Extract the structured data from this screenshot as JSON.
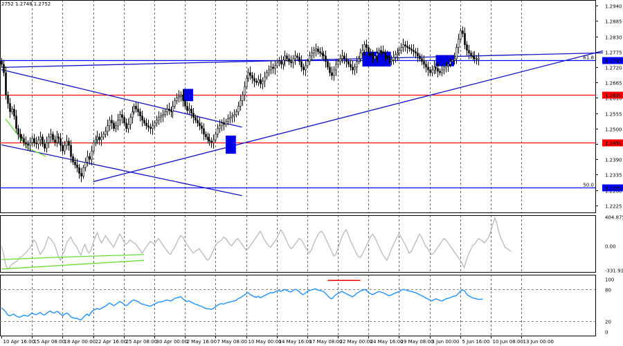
{
  "header": {
    "ohlc_text": "2752 1.2748 1.2752"
  },
  "colors": {
    "bull": "#ffffff",
    "bear": "#000000",
    "wick": "#000000",
    "level_red": "#ff0000",
    "level_blue": "#0000ff",
    "channel": "#1010c8",
    "box": "#0000e6",
    "cci_line": "#b4b4b4",
    "rsi_line": "#1e90ff",
    "green": "#66dd33",
    "grid": "#808080"
  },
  "chart_data": [
    {
      "type": "candlestick",
      "panel": "price",
      "ylim": [
        1.22,
        1.296
      ],
      "y_tick_labels": [
        "1.2940",
        "1.2885",
        "1.2830",
        "1.2775",
        "1.2720",
        "1.2665",
        "1.2610",
        "1.2555",
        "1.2500",
        "1.2445",
        "1.2390",
        "1.2335",
        "1.2280",
        "1.2225"
      ],
      "y_tick_values": [
        1.294,
        1.2885,
        1.283,
        1.2775,
        1.272,
        1.2665,
        1.261,
        1.2555,
        1.25,
        1.2445,
        1.239,
        1.2335,
        1.228,
        1.2225
      ],
      "x_tick_labels": [
        "10 Apr 16:00",
        "15 Apr 08:00",
        "18 Apr 00:00",
        "22 Apr 16:00",
        "25 Apr 08:00",
        "30 Apr 00:00",
        "2 May 16:00",
        "7 May 08:00",
        "10 May 00:00",
        "14 May 16:00",
        "17 May 08:00",
        "22 May 00:00",
        "24 May 16:00",
        "29 May 08:00",
        "3 Jun 00:00",
        "5 Jun 16:00",
        "10 Jun 08:00",
        "13 Jun 00:00"
      ],
      "x_tick_index": [
        0,
        15,
        30,
        45,
        60,
        75,
        90,
        105,
        120,
        135,
        150,
        165,
        180,
        195,
        210,
        225,
        240,
        255
      ],
      "close": [
        1.273,
        1.27,
        1.262,
        1.259,
        1.256,
        1.257,
        1.2545,
        1.25,
        1.248,
        1.247,
        1.2465,
        1.245,
        1.2445,
        1.244,
        1.245,
        1.2465,
        1.2448,
        1.2445,
        1.246,
        1.247,
        1.2445,
        1.243,
        1.245,
        1.247,
        1.248,
        1.246,
        1.245,
        1.247,
        1.2465,
        1.244,
        1.242,
        1.244,
        1.2455,
        1.244,
        1.24,
        1.238,
        1.237,
        1.236,
        1.234,
        1.233,
        1.236,
        1.238,
        1.24,
        1.239,
        1.242,
        1.245,
        1.246,
        1.247,
        1.246,
        1.247,
        1.248,
        1.249,
        1.251,
        1.253,
        1.252,
        1.25,
        1.251,
        1.253,
        1.255,
        1.254,
        1.252,
        1.25,
        1.2515,
        1.254,
        1.256,
        1.258,
        1.257,
        1.256,
        1.2545,
        1.253,
        1.252,
        1.251,
        1.2505,
        1.25,
        1.251,
        1.252,
        1.253,
        1.254,
        1.2545,
        1.255,
        1.256,
        1.257,
        1.2565,
        1.256,
        1.258,
        1.26,
        1.261,
        1.2615,
        1.262,
        1.26,
        1.258,
        1.2565,
        1.257,
        1.2555,
        1.254,
        1.253,
        1.252,
        1.251,
        1.25,
        1.248,
        1.247,
        1.246,
        1.2455,
        1.245,
        1.246,
        1.248,
        1.25,
        1.251,
        1.252,
        1.2515,
        1.2525,
        1.2535,
        1.254,
        1.2545,
        1.255,
        1.256,
        1.258,
        1.26,
        1.262,
        1.265,
        1.268,
        1.27,
        1.269,
        1.268,
        1.267,
        1.2665,
        1.2675,
        1.266,
        1.267,
        1.2685,
        1.27,
        1.271,
        1.272,
        1.2715,
        1.2725,
        1.2735,
        1.274,
        1.273,
        1.2745,
        1.276,
        1.275,
        1.274,
        1.2735,
        1.275,
        1.276,
        1.2755,
        1.274,
        1.272,
        1.271,
        1.2725,
        1.274,
        1.276,
        1.277,
        1.278,
        1.2785,
        1.2775,
        1.277,
        1.2765,
        1.276,
        1.274,
        1.272,
        1.27,
        1.269,
        1.271,
        1.273,
        1.274,
        1.275,
        1.276,
        1.275,
        1.274,
        1.273,
        1.272,
        1.271,
        1.272,
        1.274,
        1.275,
        1.277,
        1.278,
        1.28,
        1.279,
        1.277,
        1.276,
        1.275,
        1.276,
        1.277,
        1.278,
        1.2775,
        1.277,
        1.276,
        1.275,
        1.274,
        1.2745,
        1.2755,
        1.2765,
        1.277,
        1.278,
        1.279,
        1.28,
        1.2795,
        1.279,
        1.2785,
        1.278,
        1.2775,
        1.277,
        1.276,
        1.275,
        1.274,
        1.273,
        1.272,
        1.271,
        1.27,
        1.271,
        1.272,
        1.2715,
        1.2705,
        1.27,
        1.271,
        1.272,
        1.2725,
        1.273,
        1.274,
        1.2745,
        1.275,
        1.279,
        1.282,
        1.285,
        1.284,
        1.28,
        1.278,
        1.277,
        1.276,
        1.2755,
        1.275,
        1.2748,
        1.2752
      ],
      "levels": [
        {
          "value": 1.2745,
          "label": "1.2745",
          "prefix": "61.8",
          "color": "#0000ff"
        },
        {
          "value": 1.262,
          "label": "1.2620",
          "prefix": "",
          "color": "#ff0000"
        },
        {
          "value": 1.245,
          "label": "1.2450",
          "prefix": "",
          "color": "#ff0000"
        },
        {
          "value": 1.2289,
          "label": "1.2289",
          "prefix": "50.0",
          "color": "#0000ff"
        }
      ],
      "trendlines": [
        {
          "from": [
            0,
            1.2719
          ],
          "to": [
            295,
            1.2771
          ]
        },
        {
          "from": [
            0,
            1.2711
          ],
          "to": [
            118,
            1.2505
          ]
        },
        {
          "from": [
            0,
            1.2442
          ],
          "to": [
            118,
            1.226
          ]
        },
        {
          "from": [
            45,
            1.231
          ],
          "to": [
            295,
            1.2778
          ]
        }
      ],
      "boxes": [
        {
          "i0": 89,
          "i1": 94,
          "y0": 1.2598,
          "y1": 1.2642
        },
        {
          "i0": 110,
          "i1": 115,
          "y0": 1.241,
          "y1": 1.2475
        },
        {
          "i0": 177,
          "i1": 191,
          "y0": 1.2722,
          "y1": 1.2775
        },
        {
          "i0": 213,
          "i1": 222,
          "y0": 1.2723,
          "y1": 1.2763
        }
      ]
    },
    {
      "type": "line",
      "panel": "cci",
      "ylim": [
        -360,
        420
      ],
      "y_tick_labels": [
        "404.8759",
        "0.00",
        "-331.9168"
      ],
      "y_tick_values": [
        404.8759,
        0,
        -331.9168
      ],
      "values": [
        0,
        -100,
        -250,
        -320,
        -300,
        -260,
        -240,
        -220,
        -200,
        -160,
        -150,
        -120,
        -100,
        -60,
        -30,
        20,
        80,
        40,
        -40,
        -120,
        -80,
        -40,
        40,
        120,
        100,
        60,
        20,
        -60,
        -150,
        -200,
        -120,
        -60,
        40,
        80,
        120,
        60,
        20,
        -20,
        -80,
        -130,
        -40,
        20,
        -60,
        -100,
        -60,
        40,
        120,
        180,
        100,
        40,
        80,
        140,
        100,
        60,
        20,
        -20,
        40,
        100,
        160,
        120,
        60,
        20,
        40,
        80,
        60,
        40,
        20,
        -20,
        -60,
        -100,
        -60,
        -20,
        20,
        60,
        40,
        20,
        60,
        100,
        60,
        20,
        -20,
        -60,
        -100,
        -120,
        -60,
        -20,
        40,
        100,
        140,
        120,
        60,
        20,
        -20,
        -60,
        -100,
        -80,
        -60,
        -40,
        -80,
        -120,
        -160,
        -200,
        -180,
        -120,
        -60,
        0,
        40,
        60,
        80,
        120,
        100,
        60,
        20,
        0,
        40,
        80,
        100,
        60,
        20,
        -20,
        -60,
        -40,
        0,
        40,
        80,
        120,
        160,
        200,
        140,
        80,
        40,
        0,
        -20,
        20,
        60,
        100,
        160,
        220,
        180,
        120,
        60,
        0,
        -40,
        -20,
        20,
        60,
        100,
        80,
        40,
        -20,
        -60,
        -100,
        -60,
        20,
        80,
        140,
        180,
        200,
        160,
        100,
        40,
        -20,
        -80,
        -140,
        -120,
        -40,
        40,
        120,
        180,
        220,
        160,
        80,
        20,
        -40,
        -100,
        -150,
        -160,
        -120,
        -60,
        0,
        60,
        120,
        160,
        120,
        60,
        0,
        -60,
        -120,
        -160,
        -200,
        -140,
        -60,
        0,
        60,
        120,
        160,
        120,
        60,
        20,
        -40,
        -100,
        -80,
        -20,
        40,
        100,
        160,
        120,
        60,
        0,
        -40,
        -80,
        -120,
        -100,
        -60,
        -20,
        20,
        60,
        100,
        80,
        40,
        0,
        -40,
        -80,
        -120,
        -160,
        -200,
        -250,
        -300,
        -200,
        -120,
        -60,
        0,
        20,
        60,
        100,
        80,
        60,
        40,
        80,
        120,
        200,
        300,
        380,
        300,
        180,
        100,
        40,
        -20,
        -40,
        -60,
        -80
      ],
      "segments": [
        {
          "from": [
            0,
            -320
          ],
          "to": [
            70,
            -200
          ]
        },
        {
          "from": [
            0,
            -190
          ],
          "to": [
            26,
            -160
          ]
        },
        {
          "from": [
            26,
            -160
          ],
          "to": [
            70,
            -120
          ]
        }
      ]
    },
    {
      "type": "line",
      "panel": "rsi",
      "ylim": [
        0,
        100
      ],
      "y_tick_labels": [
        "100",
        "80",
        "20",
        "0"
      ],
      "y_tick_values": [
        100,
        80,
        20,
        0
      ],
      "values": [
        45,
        42,
        38,
        32,
        30,
        31,
        33,
        30,
        28,
        27,
        29,
        31,
        30,
        29,
        32,
        35,
        33,
        32,
        34,
        36,
        33,
        31,
        34,
        37,
        39,
        36,
        35,
        38,
        37,
        33,
        30,
        33,
        35,
        33,
        28,
        26,
        25,
        25,
        23,
        22,
        26,
        30,
        33,
        30,
        36,
        40,
        42,
        44,
        42,
        44,
        46,
        48,
        51,
        54,
        52,
        49,
        51,
        54,
        57,
        55,
        52,
        49,
        51,
        55,
        58,
        60,
        58,
        57,
        54,
        52,
        51,
        50,
        49,
        48,
        50,
        52,
        54,
        56,
        56,
        57,
        58,
        60,
        59,
        58,
        60,
        63,
        64,
        65,
        66,
        62,
        59,
        57,
        58,
        56,
        54,
        52,
        51,
        49,
        48,
        46,
        44,
        43,
        43,
        42,
        44,
        47,
        50,
        52,
        53,
        52,
        54,
        55,
        56,
        57,
        58,
        59,
        62,
        64,
        66,
        69,
        72,
        74,
        70,
        68,
        66,
        65,
        67,
        64,
        66,
        68,
        70,
        72,
        74,
        73,
        75,
        77,
        78,
        76,
        78,
        80,
        78,
        76,
        75,
        78,
        80,
        79,
        76,
        72,
        70,
        73,
        76,
        78,
        79,
        80,
        81,
        79,
        78,
        77,
        76,
        72,
        68,
        64,
        62,
        66,
        70,
        72,
        74,
        76,
        74,
        72,
        70,
        68,
        66,
        68,
        72,
        74,
        77,
        78,
        80,
        78,
        74,
        72,
        70,
        72,
        74,
        76,
        75,
        74,
        72,
        70,
        68,
        69,
        71,
        73,
        74,
        76,
        78,
        80,
        79,
        78,
        77,
        76,
        75,
        74,
        72,
        70,
        68,
        66,
        64,
        62,
        60,
        58,
        60,
        62,
        61,
        59,
        58,
        60,
        62,
        63,
        64,
        66,
        67,
        68,
        72,
        76,
        79,
        78,
        72,
        68,
        66,
        64,
        63,
        62,
        61,
        61,
        62
      ],
      "segments": [
        {
          "from": [
            160,
            97
          ],
          "to": [
            176,
            97
          ]
        }
      ]
    }
  ]
}
